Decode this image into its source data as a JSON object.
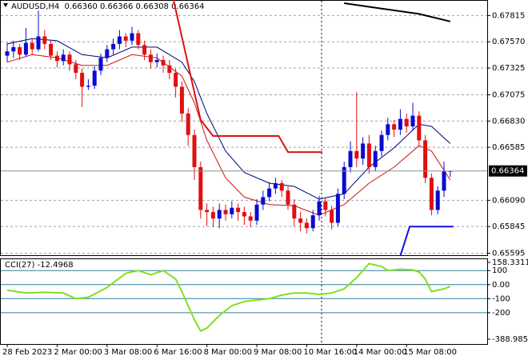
{
  "chart_data": [
    {
      "type": "candlestick",
      "symbol": "AUDUSD,H4",
      "ohlc_label": "0.66360 0.66366 0.66308 0.66364",
      "up_color": "#0a0ad0",
      "down_color": "#e01010",
      "grid": true,
      "ylim": [
        0.6557,
        0.6796
      ],
      "yticks": [
        0.67815,
        {
          "value": 0.6757,
          "label": "0.67570"
        },
        0.67325,
        0.67075,
        {
          "value": 0.6683,
          "label": "0.66830"
        },
        0.66585,
        {
          "value": 0.6609,
          "label": "0.66090"
        },
        0.65845,
        0.65595
      ],
      "current_price": 0.66364,
      "categories": [
        "28 Feb 2023",
        null,
        null,
        null,
        null,
        null,
        null,
        null,
        "2 Mar 00:00",
        null,
        null,
        null,
        null,
        null,
        null,
        null,
        "3 Mar 08:00",
        null,
        null,
        null,
        null,
        null,
        null,
        null,
        "6 Mar 16:00",
        null,
        null,
        null,
        null,
        null,
        null,
        null,
        "8 Mar 00:00",
        null,
        null,
        null,
        null,
        null,
        null,
        null,
        "9 Mar 08:00",
        null,
        null,
        null,
        null,
        null,
        null,
        null,
        "10 Mar 16:00",
        null,
        null,
        null,
        null,
        null,
        null,
        null,
        "14 Mar 00:00",
        null,
        null,
        null,
        null,
        null,
        null,
        null,
        "15 Mar 08:00",
        null,
        null,
        null,
        null,
        null,
        null,
        null
      ],
      "candles": [
        [
          0.6744,
          0.6756,
          0.6738,
          0.6748
        ],
        [
          0.6748,
          0.6758,
          0.6742,
          0.6752
        ],
        [
          0.6752,
          0.6755,
          0.674,
          0.6745
        ],
        [
          0.6745,
          0.677,
          0.6743,
          0.6756
        ],
        [
          0.6756,
          0.676,
          0.6745,
          0.675
        ],
        [
          0.675,
          0.6786,
          0.6748,
          0.6762
        ],
        [
          0.6762,
          0.6768,
          0.675,
          0.6755
        ],
        [
          0.6755,
          0.6758,
          0.674,
          0.6744
        ],
        [
          0.6744,
          0.6748,
          0.6733,
          0.6739
        ],
        [
          0.6739,
          0.675,
          0.6735,
          0.6745
        ],
        [
          0.6745,
          0.6748,
          0.673,
          0.6736
        ],
        [
          0.6736,
          0.674,
          0.6722,
          0.6728
        ],
        [
          0.6728,
          0.6732,
          0.6696,
          0.6715
        ],
        [
          0.6715,
          0.6722,
          0.6712,
          0.6716
        ],
        [
          0.6716,
          0.6734,
          0.6713,
          0.673
        ],
        [
          0.673,
          0.6746,
          0.6726,
          0.6742
        ],
        [
          0.6742,
          0.6754,
          0.6738,
          0.675
        ],
        [
          0.675,
          0.676,
          0.6745,
          0.6755
        ],
        [
          0.6755,
          0.6768,
          0.675,
          0.6762
        ],
        [
          0.6762,
          0.6765,
          0.6752,
          0.6758
        ],
        [
          0.6758,
          0.6771,
          0.6754,
          0.6765
        ],
        [
          0.6765,
          0.6768,
          0.675,
          0.6754
        ],
        [
          0.6754,
          0.6758,
          0.674,
          0.6745
        ],
        [
          0.6745,
          0.675,
          0.6732,
          0.6738
        ],
        [
          0.6738,
          0.6746,
          0.6733,
          0.674
        ],
        [
          0.674,
          0.6744,
          0.6728,
          0.6735
        ],
        [
          0.6735,
          0.674,
          0.6722,
          0.6728
        ],
        [
          0.6728,
          0.6732,
          0.6705,
          0.6715
        ],
        [
          0.6715,
          0.672,
          0.6682,
          0.669
        ],
        [
          0.669,
          0.6695,
          0.666,
          0.667
        ],
        [
          0.667,
          0.6675,
          0.6628,
          0.664
        ],
        [
          0.664,
          0.6645,
          0.6592,
          0.66
        ],
        [
          0.66,
          0.6606,
          0.6585,
          0.6598
        ],
        [
          0.6598,
          0.6603,
          0.6584,
          0.6592
        ],
        [
          0.6592,
          0.6606,
          0.6583,
          0.66
        ],
        [
          0.66,
          0.6605,
          0.659,
          0.6596
        ],
        [
          0.6596,
          0.6608,
          0.6592,
          0.6602
        ],
        [
          0.6602,
          0.6606,
          0.659,
          0.6598
        ],
        [
          0.6598,
          0.6603,
          0.6586,
          0.6594
        ],
        [
          0.6594,
          0.6598,
          0.6584,
          0.659
        ],
        [
          0.659,
          0.661,
          0.6586,
          0.6605
        ],
        [
          0.6605,
          0.6618,
          0.66,
          0.6612
        ],
        [
          0.6612,
          0.6626,
          0.6608,
          0.662
        ],
        [
          0.662,
          0.663,
          0.6615,
          0.6625
        ],
        [
          0.6625,
          0.6628,
          0.6612,
          0.6618
        ],
        [
          0.6618,
          0.6622,
          0.66,
          0.6605
        ],
        [
          0.6605,
          0.661,
          0.6585,
          0.6592
        ],
        [
          0.6592,
          0.6598,
          0.658,
          0.6588
        ],
        [
          0.6588,
          0.6592,
          0.6578,
          0.6583
        ],
        [
          0.6583,
          0.66,
          0.658,
          0.6595
        ],
        [
          0.6595,
          0.6613,
          0.659,
          0.6608
        ],
        [
          0.6608,
          0.6612,
          0.6594,
          0.66
        ],
        [
          0.66,
          0.6604,
          0.6582,
          0.6588
        ],
        [
          0.6588,
          0.662,
          0.6585,
          0.6615
        ],
        [
          0.6615,
          0.6645,
          0.661,
          0.664
        ],
        [
          0.664,
          0.6664,
          0.6635,
          0.6655
        ],
        [
          0.6655,
          0.671,
          0.664,
          0.6648
        ],
        [
          0.6648,
          0.6668,
          0.6642,
          0.6662
        ],
        [
          0.6662,
          0.667,
          0.6634,
          0.664
        ],
        [
          0.664,
          0.666,
          0.6636,
          0.6655
        ],
        [
          0.6655,
          0.6674,
          0.665,
          0.667
        ],
        [
          0.667,
          0.6686,
          0.6665,
          0.668
        ],
        [
          0.668,
          0.6684,
          0.6668,
          0.6675
        ],
        [
          0.6675,
          0.6694,
          0.667,
          0.6685
        ],
        [
          0.6685,
          0.669,
          0.6672,
          0.6678
        ],
        [
          0.6678,
          0.67,
          0.6674,
          0.6688
        ],
        [
          0.6688,
          0.6692,
          0.666,
          0.6665
        ],
        [
          0.6665,
          0.667,
          0.6625,
          0.663
        ],
        [
          0.663,
          0.6634,
          0.6595,
          0.66
        ],
        [
          0.66,
          0.6622,
          0.6596,
          0.6618
        ],
        [
          0.6618,
          0.6645,
          0.6612,
          0.6636
        ],
        [
          0.6636,
          0.66366,
          0.66308,
          0.66364
        ]
      ],
      "overlays": [
        {
          "color": "#000080",
          "x": [
            0,
            4,
            8,
            12,
            16,
            20,
            24,
            28,
            30,
            32,
            35,
            38,
            42,
            46,
            50,
            54,
            58,
            62,
            66,
            68,
            71
          ],
          "values": [
            0.6755,
            0.676,
            0.6758,
            0.6745,
            0.6742,
            0.6752,
            0.6752,
            0.6738,
            0.672,
            0.669,
            0.6655,
            0.6635,
            0.6625,
            0.6622,
            0.661,
            0.6615,
            0.664,
            0.6658,
            0.668,
            0.6678,
            0.6662
          ]
        },
        {
          "color": "#d01010",
          "x": [
            0,
            4,
            8,
            12,
            16,
            20,
            24,
            28,
            30,
            32,
            35,
            38,
            42,
            46,
            50,
            54,
            58,
            62,
            66,
            68,
            71
          ],
          "values": [
            0.6738,
            0.6745,
            0.6742,
            0.6735,
            0.6735,
            0.6745,
            0.6742,
            0.6725,
            0.67,
            0.6665,
            0.663,
            0.6612,
            0.6605,
            0.6604,
            0.6595,
            0.6605,
            0.6625,
            0.664,
            0.666,
            0.6655,
            0.6628
          ]
        },
        {
          "color": "#000000",
          "x": [
            54,
            60,
            66,
            71
          ],
          "values": [
            0.6793,
            0.6788,
            0.6783,
            0.6776
          ]
        },
        {
          "color": "#e01010",
          "x": [
            26.5,
            31,
            33,
            43.5,
            45,
            50.5
          ],
          "values": [
            0.68,
            0.6684,
            0.6669,
            0.6669,
            0.6654,
            0.6654
          ]
        },
        {
          "color": "#1010e0",
          "x": [
            63,
            64.5,
            71.5
          ],
          "values": [
            0.6557,
            0.65845,
            0.65845
          ]
        }
      ]
    },
    {
      "type": "line",
      "title": "CCI(27)",
      "current": -12.4968,
      "color": "#80e020",
      "ylim": [
        -388.985,
        158.3311
      ],
      "yticks": [
        158.3311,
        100,
        {
          "value": 0,
          "label": "0.00"
        },
        -100,
        -200,
        -388.985
      ],
      "levels": [
        100,
        0,
        -100,
        -200
      ],
      "x": [
        0,
        3,
        6,
        9,
        11,
        13,
        16,
        19,
        21,
        23,
        25,
        27,
        28,
        29,
        30,
        31,
        32,
        34,
        36,
        38,
        40,
        42,
        44,
        46,
        48,
        50,
        52,
        54,
        56,
        58,
        60,
        61,
        63,
        65,
        66,
        67,
        68,
        70,
        71
      ],
      "values": [
        -40,
        -60,
        -55,
        -60,
        -100,
        -90,
        -20,
        80,
        100,
        70,
        100,
        40,
        -50,
        -150,
        -250,
        -330,
        -310,
        -220,
        -150,
        -120,
        -110,
        -100,
        -75,
        -60,
        -60,
        -70,
        -60,
        -30,
        50,
        150,
        130,
        100,
        110,
        105,
        90,
        40,
        -50,
        -30,
        -12.4968
      ]
    }
  ]
}
